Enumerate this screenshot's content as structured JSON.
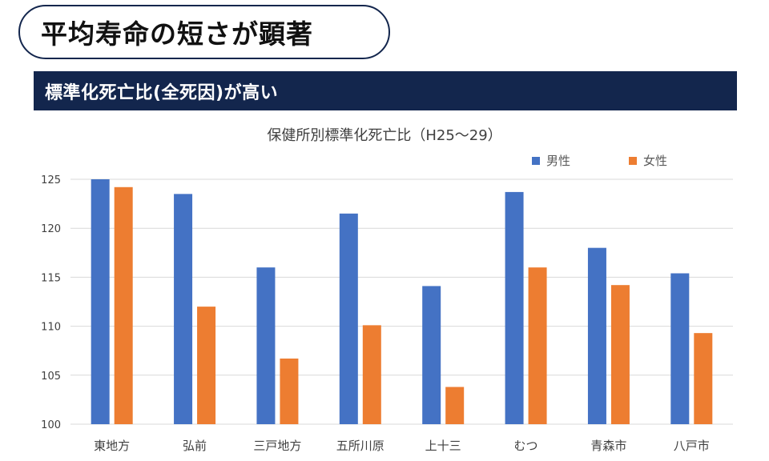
{
  "header": {
    "title": "平均寿命の短さが顕著",
    "subtitle": "標準化死亡比(全死因)が高い"
  },
  "colors": {
    "navy": "#13264d",
    "male": "#4472c4",
    "female": "#ed7d31"
  },
  "chart_data": {
    "type": "bar",
    "title": "保健所別標準化死亡比（H25～29）",
    "categories": [
      "東地方",
      "弘前",
      "三戸地方",
      "五所川原",
      "上十三",
      "むつ",
      "青森市",
      "八戸市"
    ],
    "series": [
      {
        "name": "男性",
        "values": [
          125.0,
          123.5,
          116.0,
          121.5,
          114.1,
          123.7,
          118.0,
          115.4
        ]
      },
      {
        "name": "女性",
        "values": [
          124.2,
          112.0,
          106.7,
          110.1,
          103.8,
          116.0,
          114.2,
          109.3
        ]
      }
    ],
    "ylim": [
      100,
      125
    ],
    "yticks": [
      100,
      105,
      110,
      115,
      120,
      125
    ],
    "grid": true,
    "legend": "top-right"
  }
}
